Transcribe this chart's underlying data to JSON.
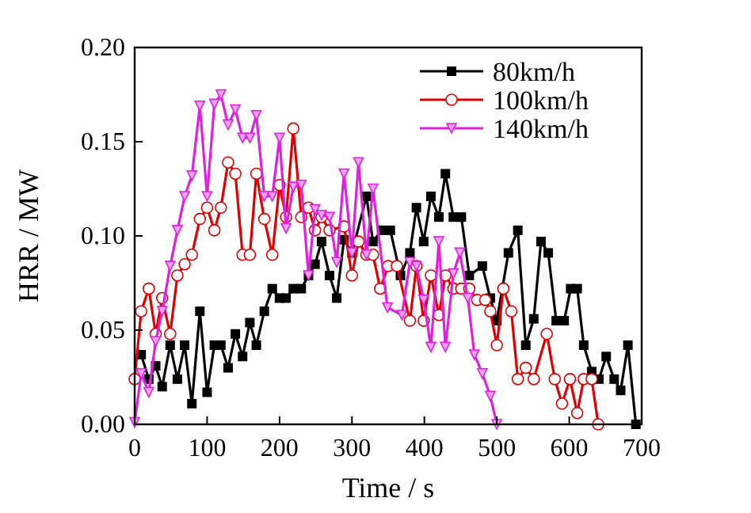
{
  "chart_data": {
    "type": "line",
    "xlabel": "Time / s",
    "ylabel": "HRR / MW",
    "xlim": [
      0,
      700
    ],
    "ylim": [
      0,
      0.2
    ],
    "xticks": [
      0,
      100,
      200,
      300,
      400,
      500,
      600,
      700
    ],
    "yticks": [
      {
        "value": 0,
        "label": "0.00"
      },
      {
        "value": 0.05,
        "label": "0.05"
      },
      {
        "value": 0.1,
        "label": "0.10"
      },
      {
        "value": 0.15,
        "label": "0.15"
      },
      {
        "value": 0.2,
        "label": "0.20"
      }
    ],
    "legend": "top right",
    "grid": false,
    "series": [
      {
        "name": "80km/h",
        "color": "#000000",
        "marker": "square",
        "x": [
          9,
          19.5,
          29,
          38,
          49,
          59,
          69,
          79,
          90,
          100,
          110,
          119,
          129,
          139,
          149,
          159,
          168,
          179,
          190,
          200,
          209,
          219,
          230,
          240,
          249,
          258,
          269,
          279,
          289,
          300,
          320,
          329,
          341,
          353,
          367,
          380,
          389,
          399,
          409,
          420,
          429,
          440,
          451,
          462,
          480,
          491,
          500,
          516,
          529,
          540,
          551,
          561,
          571,
          582,
          593,
          602,
          611,
          620,
          631,
          641,
          651,
          662,
          671,
          681,
          692
        ],
        "values": [
          0.037,
          0.024,
          0.031,
          0.02,
          0.042,
          0.024,
          0.042,
          0.011,
          0.06,
          0.017,
          0.042,
          0.042,
          0.03,
          0.048,
          0.036,
          0.054,
          0.042,
          0.06,
          0.072,
          0.067,
          0.067,
          0.072,
          0.072,
          0.079,
          0.085,
          0.097,
          0.079,
          0.067,
          0.098,
          0.091,
          0.121,
          0.097,
          0.103,
          0.103,
          0.079,
          0.091,
          0.115,
          0.097,
          0.121,
          0.11,
          0.133,
          0.11,
          0.11,
          0.079,
          0.084,
          0.067,
          0.055,
          0.091,
          0.103,
          0.042,
          0.056,
          0.097,
          0.091,
          0.055,
          0.055,
          0.072,
          0.072,
          0.042,
          0.028,
          0.024,
          0.036,
          0.024,
          0.018,
          0.042,
          0
        ]
      },
      {
        "name": "100km/h",
        "color": "#e00000",
        "marker": "circle",
        "x": [
          0,
          9,
          19.5,
          29,
          38,
          49,
          59,
          69,
          79,
          90,
          100,
          110,
          119,
          129,
          139,
          149,
          159,
          168,
          179,
          190,
          200,
          209,
          219,
          230,
          240,
          249,
          258,
          269,
          289,
          300,
          309,
          320,
          329,
          339,
          350,
          362,
          380,
          389,
          399,
          409,
          420,
          429,
          440,
          451,
          462,
          473,
          484,
          491,
          500,
          509,
          520,
          529,
          540,
          551,
          569,
          580,
          590,
          601,
          611,
          620,
          631,
          640
        ],
        "values": [
          0.024,
          0.06,
          0.072,
          0.048,
          0.067,
          0.048,
          0.079,
          0.085,
          0.09,
          0.109,
          0.115,
          0.103,
          0.115,
          0.139,
          0.133,
          0.09,
          0.09,
          0.133,
          0.109,
          0.09,
          0.127,
          0.11,
          0.157,
          0.11,
          0.115,
          0.103,
          0.11,
          0.103,
          0.105,
          0.079,
          0.097,
          0.09,
          0.09,
          0.072,
          0.084,
          0.084,
          0.055,
          0.084,
          0.055,
          0.079,
          0.058,
          0.079,
          0.072,
          0.072,
          0.072,
          0.066,
          0.066,
          0.06,
          0.042,
          0.072,
          0.06,
          0.024,
          0.03,
          0.024,
          0.048,
          0.024,
          0.011,
          0.024,
          0.006,
          0.024,
          0.024,
          0
        ]
      },
      {
        "name": "140km/h",
        "color": "#e020e0",
        "marker": "triangle-down",
        "x": [
          0,
          9,
          19.5,
          29,
          38,
          49,
          59,
          69,
          79,
          90,
          100,
          110,
          119,
          129,
          139,
          149,
          159,
          168,
          179,
          190,
          200,
          209,
          219,
          230,
          240,
          249,
          258,
          269,
          279,
          289,
          300,
          309,
          320,
          329,
          349,
          369,
          380,
          389,
          399,
          409,
          420,
          429,
          440,
          449,
          460,
          469,
          480,
          491,
          500
        ],
        "values": [
          0.001,
          0.027,
          0.017,
          0.044,
          0.06,
          0.084,
          0.103,
          0.121,
          0.132,
          0.169,
          0.121,
          0.17,
          0.175,
          0.159,
          0.167,
          0.152,
          0.152,
          0.164,
          0.121,
          0.121,
          0.152,
          0.104,
          0.126,
          0.127,
          0.079,
          0.114,
          0.111,
          0.11,
          0.086,
          0.133,
          0.091,
          0.139,
          0.09,
          0.125,
          0.062,
          0.058,
          0.086,
          0.084,
          0.066,
          0.041,
          0.097,
          0.041,
          0.08,
          0.091,
          0.067,
          0.037,
          0.027,
          0.015,
          0
        ]
      }
    ]
  }
}
